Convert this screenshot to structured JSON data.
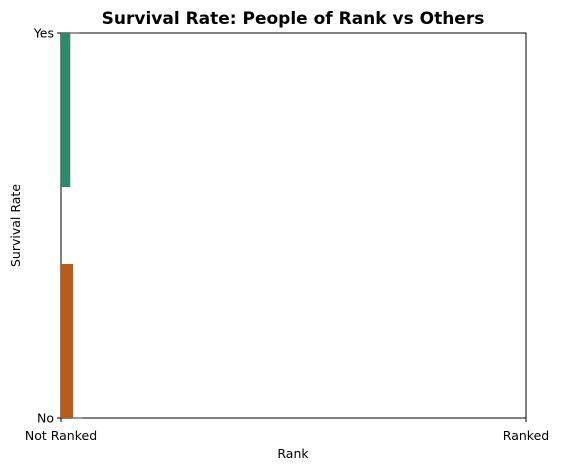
{
  "chart_data": {
    "type": "bar",
    "title": "Survival Rate: People of Rank vs Others",
    "xlabel": "Rank",
    "ylabel": "Survival Rate",
    "x_ticks": [
      "Not Ranked",
      "Ranked"
    ],
    "y_ticks": [
      "No",
      "Yes"
    ],
    "xlim": [
      0,
      1
    ],
    "ylim": [
      0,
      1
    ],
    "grid": false,
    "legend": "none",
    "series": [
      {
        "color": "#1b9e77",
        "bars": [
          {
            "x0": 0.0,
            "x1": 0.02,
            "y0": 0.6,
            "y1": 1.0
          },
          {
            "x0": 0.02,
            "x1": 0.04,
            "y0": 1.0,
            "y1": 1.0
          }
        ]
      },
      {
        "color": "#d95f02",
        "bars": [
          {
            "x0": 0.0,
            "x1": 0.026,
            "y0": 0.0,
            "y1": 0.4
          },
          {
            "x0": 0.026,
            "x1": 0.046,
            "y0": 0.0,
            "y1": 0.0
          }
        ]
      }
    ],
    "series_colors": {
      "yes_bar": "#2a8a6a",
      "no_bar": "#b95b1b",
      "edge": "#333333"
    }
  }
}
